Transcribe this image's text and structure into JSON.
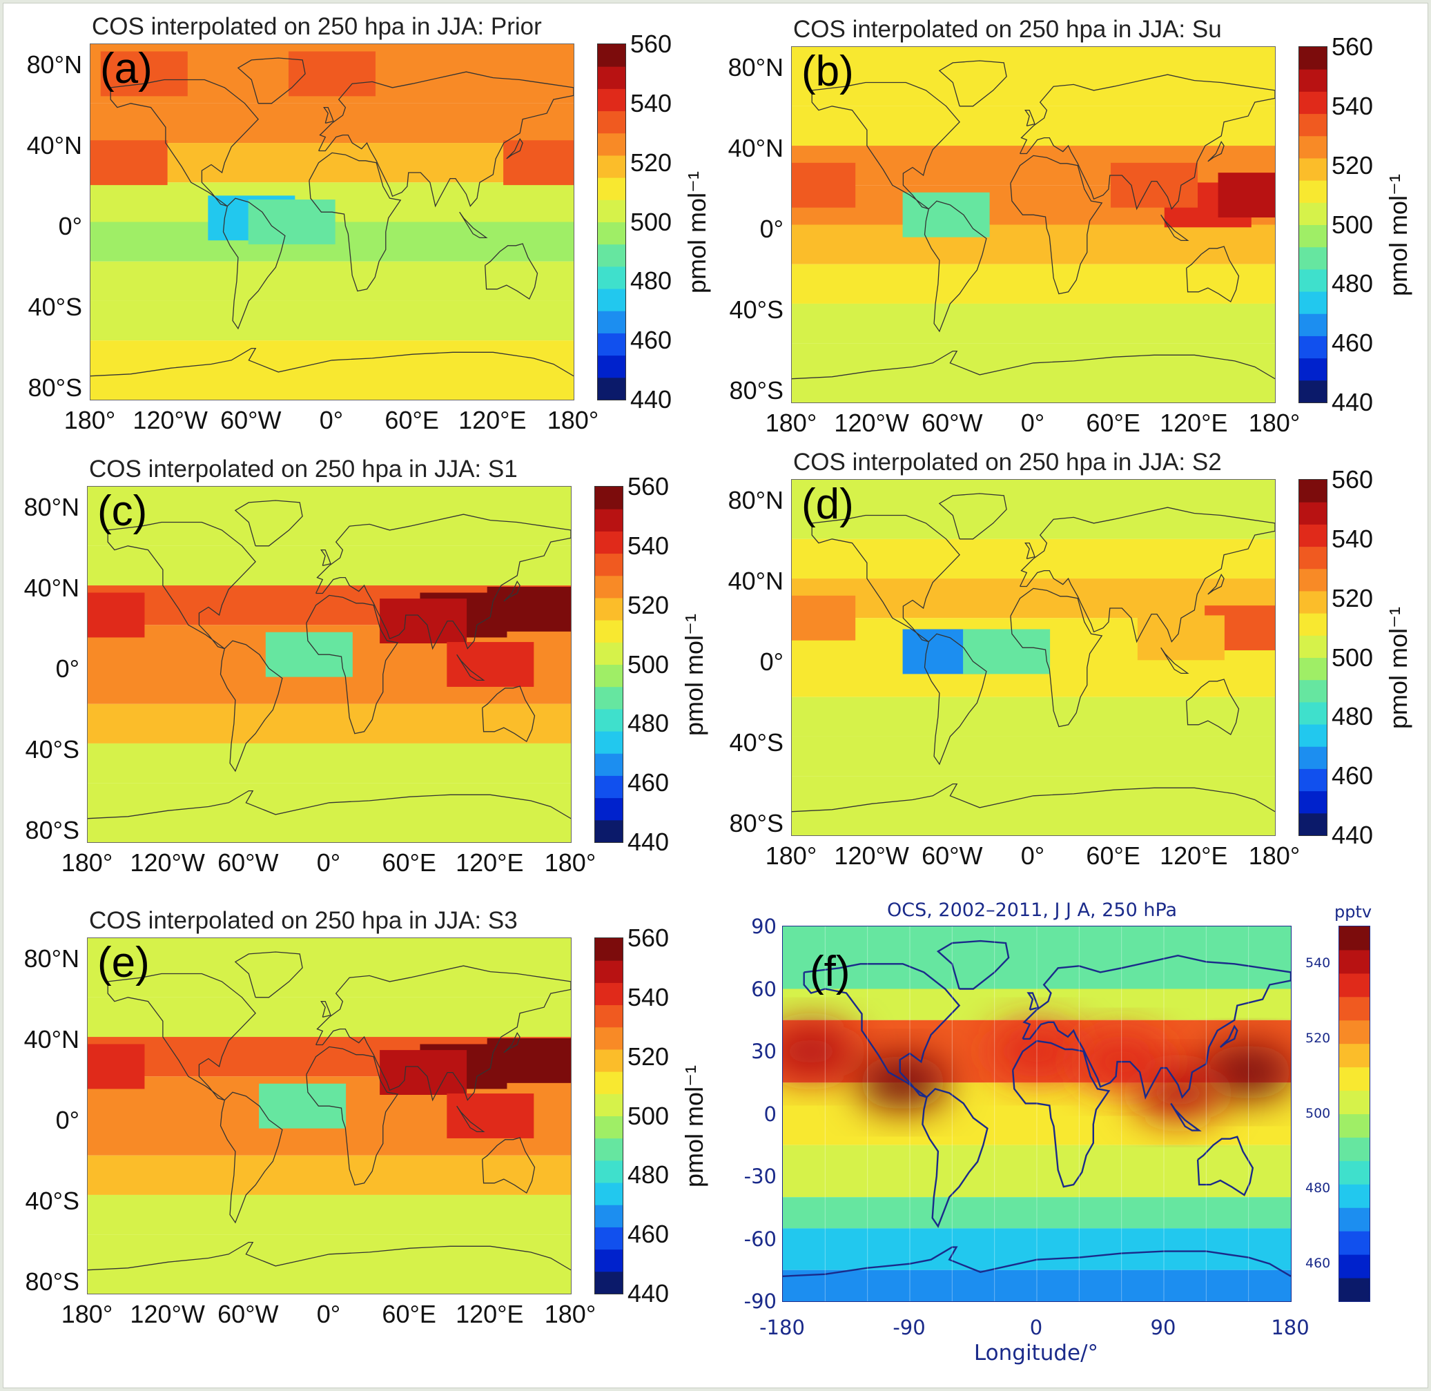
{
  "colors": {
    "colorbar": [
      "#0b1a6a",
      "#0022cc",
      "#1150ee",
      "#1c8ef0",
      "#22c8ee",
      "#3fe0cc",
      "#66e6a0",
      "#9fee66",
      "#d6f24a",
      "#f8e830",
      "#fbbd2a",
      "#f88a26",
      "#f05a20",
      "#e02a1a",
      "#b81212",
      "#7c0c0c"
    ],
    "continent_line": "#333333",
    "f_line": "#1a2a8a"
  },
  "panels": [
    {
      "id": "a",
      "letter": "(a)",
      "title": "COS interpolated on 250 hpa in JJA: Prior",
      "lat_labels": [
        "80°N",
        "40°N",
        "0°",
        "40°S",
        "80°S"
      ],
      "lon_labels": [
        "180°",
        "120°W",
        "60°W",
        "0°",
        "60°E",
        "120°E",
        "180°"
      ],
      "colorbar": {
        "ticks": [
          "560",
          "540",
          "520",
          "500",
          "480",
          "460",
          "440"
        ],
        "unit": "pmol mol⁻¹",
        "min": 440,
        "max": 560
      },
      "field": [
        {
          "lat": [
            90,
            60
          ],
          "value": 528
        },
        {
          "lat": [
            60,
            40
          ],
          "value": 525
        },
        {
          "lat": [
            40,
            20
          ],
          "value": 518
        },
        {
          "lat": [
            20,
            0
          ],
          "value": 505
        },
        {
          "lat": [
            0,
            -20
          ],
          "value": 497
        },
        {
          "lat": [
            -20,
            -40
          ],
          "value": 500
        },
        {
          "lat": [
            -40,
            -60
          ],
          "value": 502
        },
        {
          "lat": [
            -60,
            -90
          ],
          "value": 508
        }
      ],
      "blobs": [
        {
          "lon": -155,
          "lat": 30,
          "value": 535
        },
        {
          "lon": 160,
          "lat": 30,
          "value": 535
        },
        {
          "lon": -60,
          "lat": 2,
          "value": 472
        },
        {
          "lon": -30,
          "lat": 0,
          "value": 490
        },
        {
          "lon": -140,
          "lat": 75,
          "value": 532
        },
        {
          "lon": 0,
          "lat": 75,
          "value": 532
        }
      ]
    },
    {
      "id": "b",
      "letter": "(b)",
      "title": "COS interpolated on 250 hpa in JJA: Su",
      "lat_labels": [
        "80°N",
        "40°N",
        "0°",
        "40°S",
        "80°S"
      ],
      "lon_labels": [
        "180°",
        "120°W",
        "60°W",
        "0°",
        "60°E",
        "120°E",
        "180°"
      ],
      "colorbar": {
        "ticks": [
          "560",
          "540",
          "520",
          "500",
          "480",
          "460",
          "440"
        ],
        "unit": "pmol mol⁻¹",
        "min": 440,
        "max": 560
      },
      "field": [
        {
          "lat": [
            90,
            60
          ],
          "value": 508
        },
        {
          "lat": [
            60,
            40
          ],
          "value": 510
        },
        {
          "lat": [
            40,
            20
          ],
          "value": 528
        },
        {
          "lat": [
            20,
            0
          ],
          "value": 524
        },
        {
          "lat": [
            0,
            -20
          ],
          "value": 518
        },
        {
          "lat": [
            -20,
            -40
          ],
          "value": 510
        },
        {
          "lat": [
            -40,
            -60
          ],
          "value": 503
        },
        {
          "lat": [
            -60,
            -90
          ],
          "value": 503
        }
      ],
      "blobs": [
        {
          "lon": 130,
          "lat": 10,
          "value": 540
        },
        {
          "lon": 170,
          "lat": 15,
          "value": 545
        },
        {
          "lon": 90,
          "lat": 20,
          "value": 532
        },
        {
          "lon": -165,
          "lat": 20,
          "value": 535
        },
        {
          "lon": -65,
          "lat": 5,
          "value": 490
        }
      ]
    },
    {
      "id": "c",
      "letter": "(c)",
      "title": "COS interpolated on 250 hpa in JJA: S1",
      "lat_labels": [
        "80°N",
        "40°N",
        "0°",
        "40°S",
        "80°S"
      ],
      "lon_labels": [
        "180°",
        "120°W",
        "60°W",
        "0°",
        "60°E",
        "120°E",
        "180°"
      ],
      "colorbar": {
        "ticks": [
          "560",
          "540",
          "520",
          "500",
          "480",
          "460",
          "440"
        ],
        "unit": "pmol mol⁻¹",
        "min": 440,
        "max": 560
      },
      "field": [
        {
          "lat": [
            90,
            60
          ],
          "value": 503
        },
        {
          "lat": [
            60,
            40
          ],
          "value": 507
        },
        {
          "lat": [
            40,
            20
          ],
          "value": 532
        },
        {
          "lat": [
            20,
            0
          ],
          "value": 526
        },
        {
          "lat": [
            0,
            -20
          ],
          "value": 524
        },
        {
          "lat": [
            -20,
            -40
          ],
          "value": 520
        },
        {
          "lat": [
            -40,
            -60
          ],
          "value": 505
        },
        {
          "lat": [
            -60,
            -90
          ],
          "value": 505
        }
      ],
      "blobs": [
        {
          "lon": 100,
          "lat": 25,
          "value": 555
        },
        {
          "lon": 150,
          "lat": 28,
          "value": 555
        },
        {
          "lon": 70,
          "lat": 22,
          "value": 550
        },
        {
          "lon": 120,
          "lat": 0,
          "value": 542
        },
        {
          "lon": -170,
          "lat": 25,
          "value": 542
        },
        {
          "lon": -15,
          "lat": 5,
          "value": 490
        }
      ]
    },
    {
      "id": "d",
      "letter": "(d)",
      "title": "COS interpolated on 250 hpa in JJA: S2",
      "lat_labels": [
        "80°N",
        "40°N",
        "0°",
        "40°S",
        "80°S"
      ],
      "lon_labels": [
        "180°",
        "120°W",
        "60°W",
        "0°",
        "60°E",
        "120°E",
        "180°"
      ],
      "colorbar": {
        "ticks": [
          "560",
          "540",
          "520",
          "500",
          "480",
          "460",
          "440"
        ],
        "unit": "pmol mol⁻¹",
        "min": 440,
        "max": 560
      },
      "field": [
        {
          "lat": [
            90,
            60
          ],
          "value": 505
        },
        {
          "lat": [
            60,
            40
          ],
          "value": 508
        },
        {
          "lat": [
            40,
            20
          ],
          "value": 515
        },
        {
          "lat": [
            20,
            0
          ],
          "value": 512
        },
        {
          "lat": [
            0,
            -20
          ],
          "value": 510
        },
        {
          "lat": [
            -20,
            -40
          ],
          "value": 505
        },
        {
          "lat": [
            -40,
            -60
          ],
          "value": 502
        },
        {
          "lat": [
            -60,
            -90
          ],
          "value": 503
        }
      ],
      "blobs": [
        {
          "lon": -65,
          "lat": 3,
          "value": 465
        },
        {
          "lon": -20,
          "lat": 3,
          "value": 488
        },
        {
          "lon": 160,
          "lat": 15,
          "value": 535
        },
        {
          "lon": -165,
          "lat": 20,
          "value": 528
        },
        {
          "lon": 110,
          "lat": 10,
          "value": 520
        }
      ]
    },
    {
      "id": "e",
      "letter": "(e)",
      "title": "COS interpolated on 250 hpa in JJA: S3",
      "lat_labels": [
        "80°N",
        "40°N",
        "0°",
        "40°S",
        "80°S"
      ],
      "lon_labels": [
        "180°",
        "120°W",
        "60°W",
        "0°",
        "60°E",
        "120°E",
        "180°"
      ],
      "colorbar": {
        "ticks": [
          "560",
          "540",
          "520",
          "500",
          "480",
          "460",
          "440"
        ],
        "unit": "pmol mol⁻¹",
        "min": 440,
        "max": 560
      },
      "field": [
        {
          "lat": [
            90,
            60
          ],
          "value": 503
        },
        {
          "lat": [
            60,
            40
          ],
          "value": 507
        },
        {
          "lat": [
            40,
            20
          ],
          "value": 532
        },
        {
          "lat": [
            20,
            0
          ],
          "value": 527
        },
        {
          "lat": [
            0,
            -20
          ],
          "value": 525
        },
        {
          "lat": [
            -20,
            -40
          ],
          "value": 520
        },
        {
          "lat": [
            -40,
            -60
          ],
          "value": 505
        },
        {
          "lat": [
            -60,
            -90
          ],
          "value": 505
        }
      ],
      "blobs": [
        {
          "lon": 100,
          "lat": 25,
          "value": 555
        },
        {
          "lon": 150,
          "lat": 28,
          "value": 555
        },
        {
          "lon": 70,
          "lat": 22,
          "value": 550
        },
        {
          "lon": 120,
          "lat": 0,
          "value": 542
        },
        {
          "lon": -170,
          "lat": 25,
          "value": 538
        },
        {
          "lon": -20,
          "lat": 5,
          "value": 492
        }
      ]
    }
  ],
  "panel_f": {
    "letter": "(f)",
    "title": "OCS, 2002–2011, J J A, 250 hPa",
    "y_ticks": [
      "90",
      "60",
      "30",
      "0",
      "-30",
      "-60",
      "-90"
    ],
    "x_ticks": [
      "-180",
      "-90",
      "0",
      "90",
      "180"
    ],
    "xlabel": "Longitude/°",
    "colorbar": {
      "unit": "pptv",
      "ticks": [
        "540",
        "520",
        "500",
        "480",
        "460"
      ],
      "min": 450,
      "max": 550
    },
    "field": [
      {
        "lat": [
          90,
          60
        ],
        "value": 492
      },
      {
        "lat": [
          60,
          45
        ],
        "value": 505
      },
      {
        "lat": [
          45,
          15
        ],
        "value": 530
      },
      {
        "lat": [
          15,
          -15
        ],
        "value": 512
      },
      {
        "lat": [
          -15,
          -40
        ],
        "value": 500
      },
      {
        "lat": [
          -40,
          -55
        ],
        "value": 490
      },
      {
        "lat": [
          -55,
          -75
        ],
        "value": 475
      },
      {
        "lat": [
          -75,
          -90
        ],
        "value": 470
      }
    ],
    "blobs": [
      {
        "lon": 150,
        "lat": 20,
        "value": 545
      },
      {
        "lon": 100,
        "lat": 10,
        "value": 540
      },
      {
        "lon": -160,
        "lat": 30,
        "value": 538
      },
      {
        "lon": -95,
        "lat": 15,
        "value": 545
      },
      {
        "lon": 0,
        "lat": 30,
        "value": 532
      },
      {
        "lon": 60,
        "lat": 25,
        "value": 535
      }
    ]
  }
}
